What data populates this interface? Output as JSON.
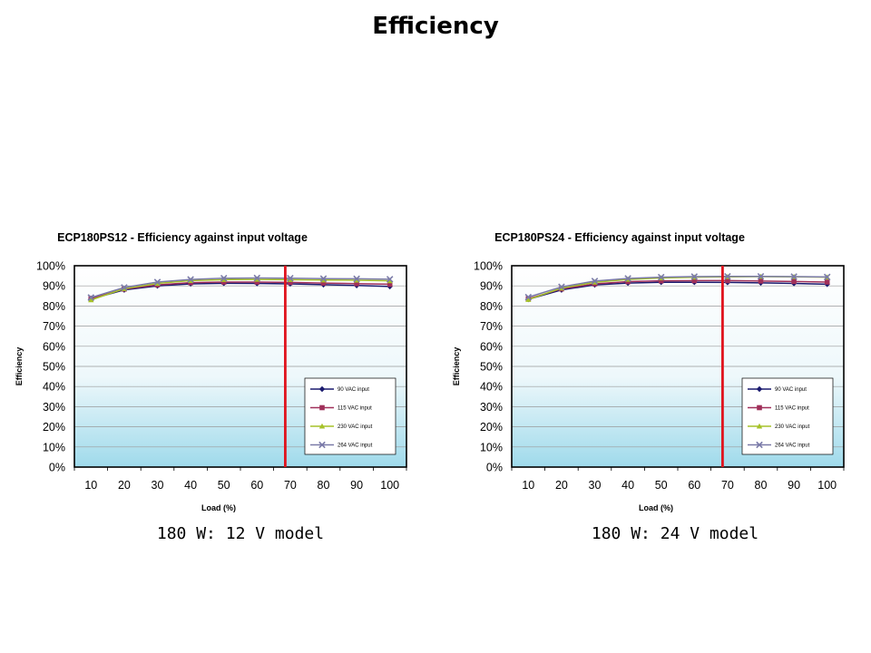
{
  "page": {
    "title": "Efficiency",
    "captions": [
      "180 W: 12 V model",
      "180 W: 24 V model"
    ]
  },
  "chart_data": [
    {
      "type": "line",
      "title": "ECP180PS12 - Efficiency against input voltage",
      "xlabel": "Load (%)",
      "ylabel": "Efficiency",
      "x": [
        10,
        20,
        30,
        40,
        50,
        60,
        70,
        80,
        90,
        100
      ],
      "y_ticks": [
        "0%",
        "10%",
        "20%",
        "30%",
        "40%",
        "50%",
        "60%",
        "70%",
        "80%",
        "90%",
        "100%"
      ],
      "ylim": [
        0,
        100
      ],
      "grid": true,
      "legend_position": "bottom-right",
      "marker_line_load": 68.5,
      "marker_line_color": "#e0141e",
      "series": [
        {
          "name": "90 VAC input",
          "color": "#1a1a6e",
          "marker": "diamond",
          "values": [
            83.5,
            88,
            90,
            91,
            91.3,
            91.2,
            91,
            90.6,
            90.2,
            89.7
          ]
        },
        {
          "name": "115 VAC input",
          "color": "#a0305a",
          "marker": "square",
          "values": [
            83.8,
            88.4,
            90.5,
            91.6,
            91.9,
            91.9,
            91.7,
            91.4,
            91.1,
            90.8
          ]
        },
        {
          "name": "230 VAC input",
          "color": "#a6c228",
          "marker": "triangle",
          "values": [
            83,
            88.6,
            91.2,
            92.6,
            93.1,
            93.2,
            93.1,
            92.9,
            92.8,
            92.5
          ]
        },
        {
          "name": "264 VAC input",
          "color": "#7a7aa8",
          "marker": "x",
          "values": [
            84.2,
            89.2,
            91.9,
            93.2,
            93.8,
            93.9,
            93.8,
            93.6,
            93.5,
            93.3
          ]
        }
      ]
    },
    {
      "type": "line",
      "title": "ECP180PS24 - Efficiency against input voltage",
      "xlabel": "Load (%)",
      "ylabel": "Efficiency",
      "x": [
        10,
        20,
        30,
        40,
        50,
        60,
        70,
        80,
        90,
        100
      ],
      "y_ticks": [
        "0%",
        "10%",
        "20%",
        "30%",
        "40%",
        "50%",
        "60%",
        "70%",
        "80%",
        "90%",
        "100%"
      ],
      "ylim": [
        0,
        100
      ],
      "grid": true,
      "legend_position": "bottom-right",
      "marker_line_load": 68.5,
      "marker_line_color": "#e0141e",
      "series": [
        {
          "name": "90 VAC input",
          "color": "#1a1a6e",
          "marker": "diamond",
          "values": [
            83.3,
            88,
            90.5,
            91.4,
            91.8,
            91.8,
            91.7,
            91.5,
            91.2,
            90.8
          ]
        },
        {
          "name": "115 VAC input",
          "color": "#a0305a",
          "marker": "square",
          "values": [
            83.6,
            88.5,
            91,
            92.1,
            92.5,
            92.6,
            92.6,
            92.4,
            92.2,
            91.9
          ]
        },
        {
          "name": "230 VAC input",
          "color": "#a6c228",
          "marker": "triangle",
          "values": [
            83.2,
            88.9,
            91.8,
            93.2,
            93.9,
            94.3,
            94.5,
            94.6,
            94.5,
            94.3
          ]
        },
        {
          "name": "264 VAC input",
          "color": "#7a7aa8",
          "marker": "x",
          "values": [
            84.4,
            89.5,
            92.4,
            93.7,
            94.3,
            94.6,
            94.7,
            94.7,
            94.6,
            94.4
          ]
        }
      ]
    }
  ]
}
